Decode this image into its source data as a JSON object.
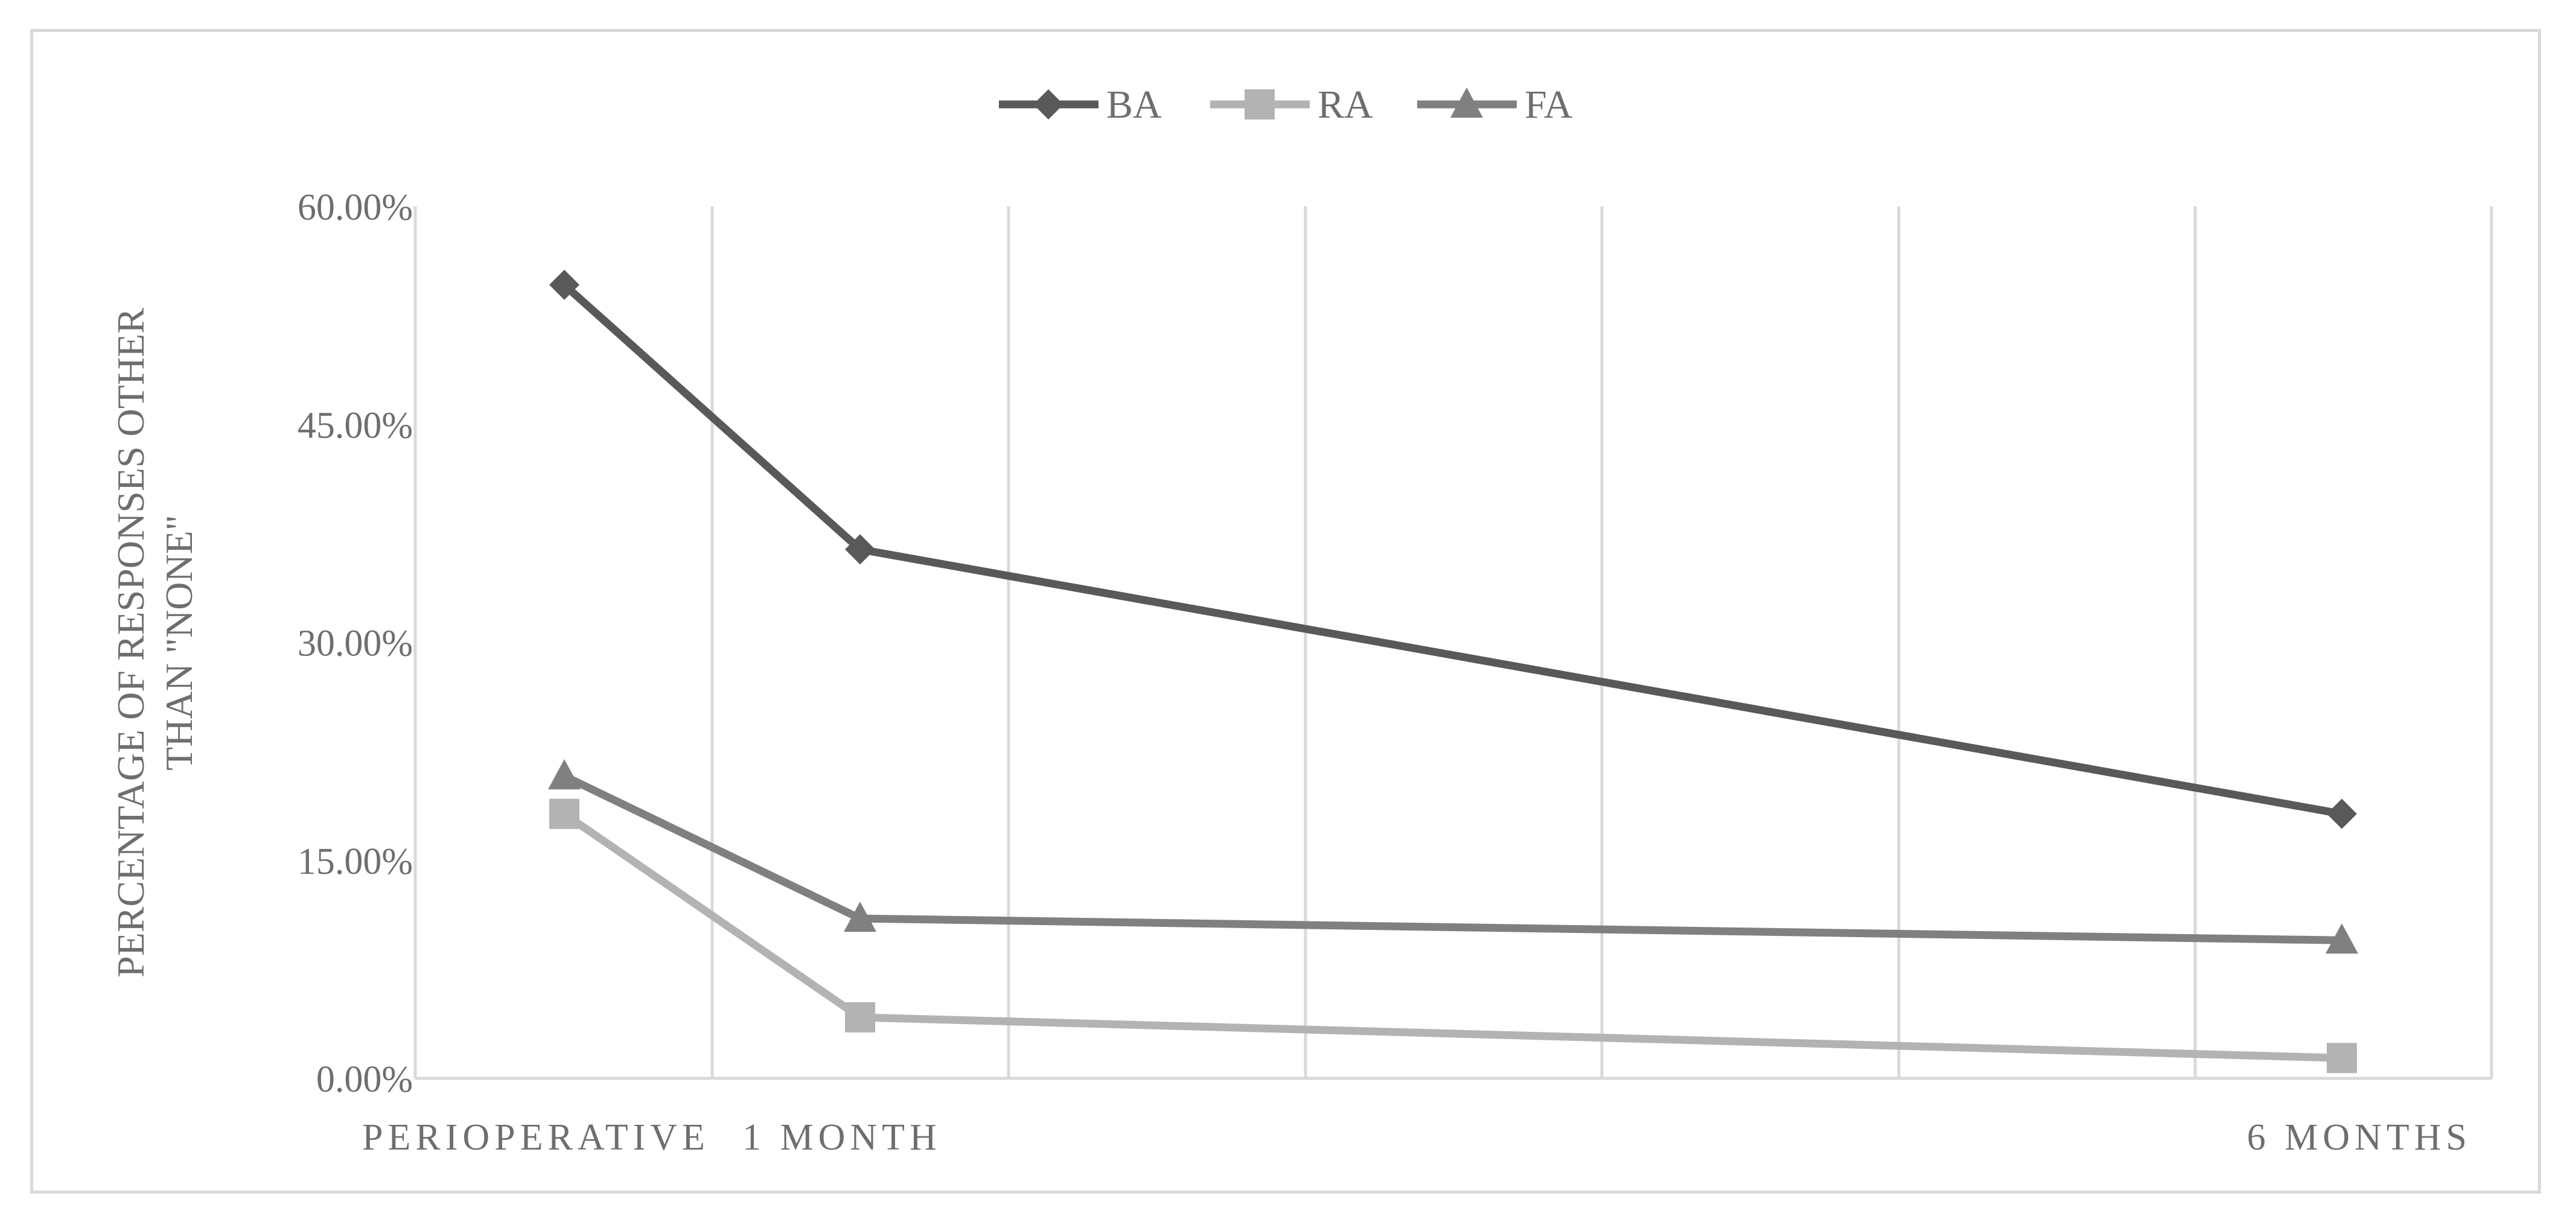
{
  "chart_data": {
    "type": "line",
    "categories": [
      "PERIOPERATIVE",
      "1 MONTH",
      "6 MONTHS"
    ],
    "series": [
      {
        "name": "BA",
        "values": [
          54.6,
          36.4,
          18.2
        ],
        "color": "#595959",
        "marker": "diamond"
      },
      {
        "name": "RA",
        "values": [
          18.2,
          4.2,
          1.4
        ],
        "color": "#b3b3b3",
        "marker": "square"
      },
      {
        "name": "FA",
        "values": [
          20.8,
          11.0,
          9.5
        ],
        "color": "#808080",
        "marker": "triangle"
      }
    ],
    "ylabel": "PERCENTAGE OF RESPONSES OTHER THAN \"NONE\"",
    "ylabel_lines": [
      "PERCENTAGE OF RESPONSES OTHER",
      "THAN \"NONE\""
    ],
    "xlabel": "",
    "ylim": [
      0,
      60
    ],
    "yticks": [
      "0.00%",
      "15.00%",
      "30.00%",
      "45.00%",
      "60.00%"
    ],
    "ytick_values": [
      0,
      15,
      30,
      45,
      60
    ],
    "grid": "vertical",
    "legend": "top-center",
    "colors": {
      "grid": "#d9d9d9",
      "text": "#6e6e6e"
    }
  }
}
